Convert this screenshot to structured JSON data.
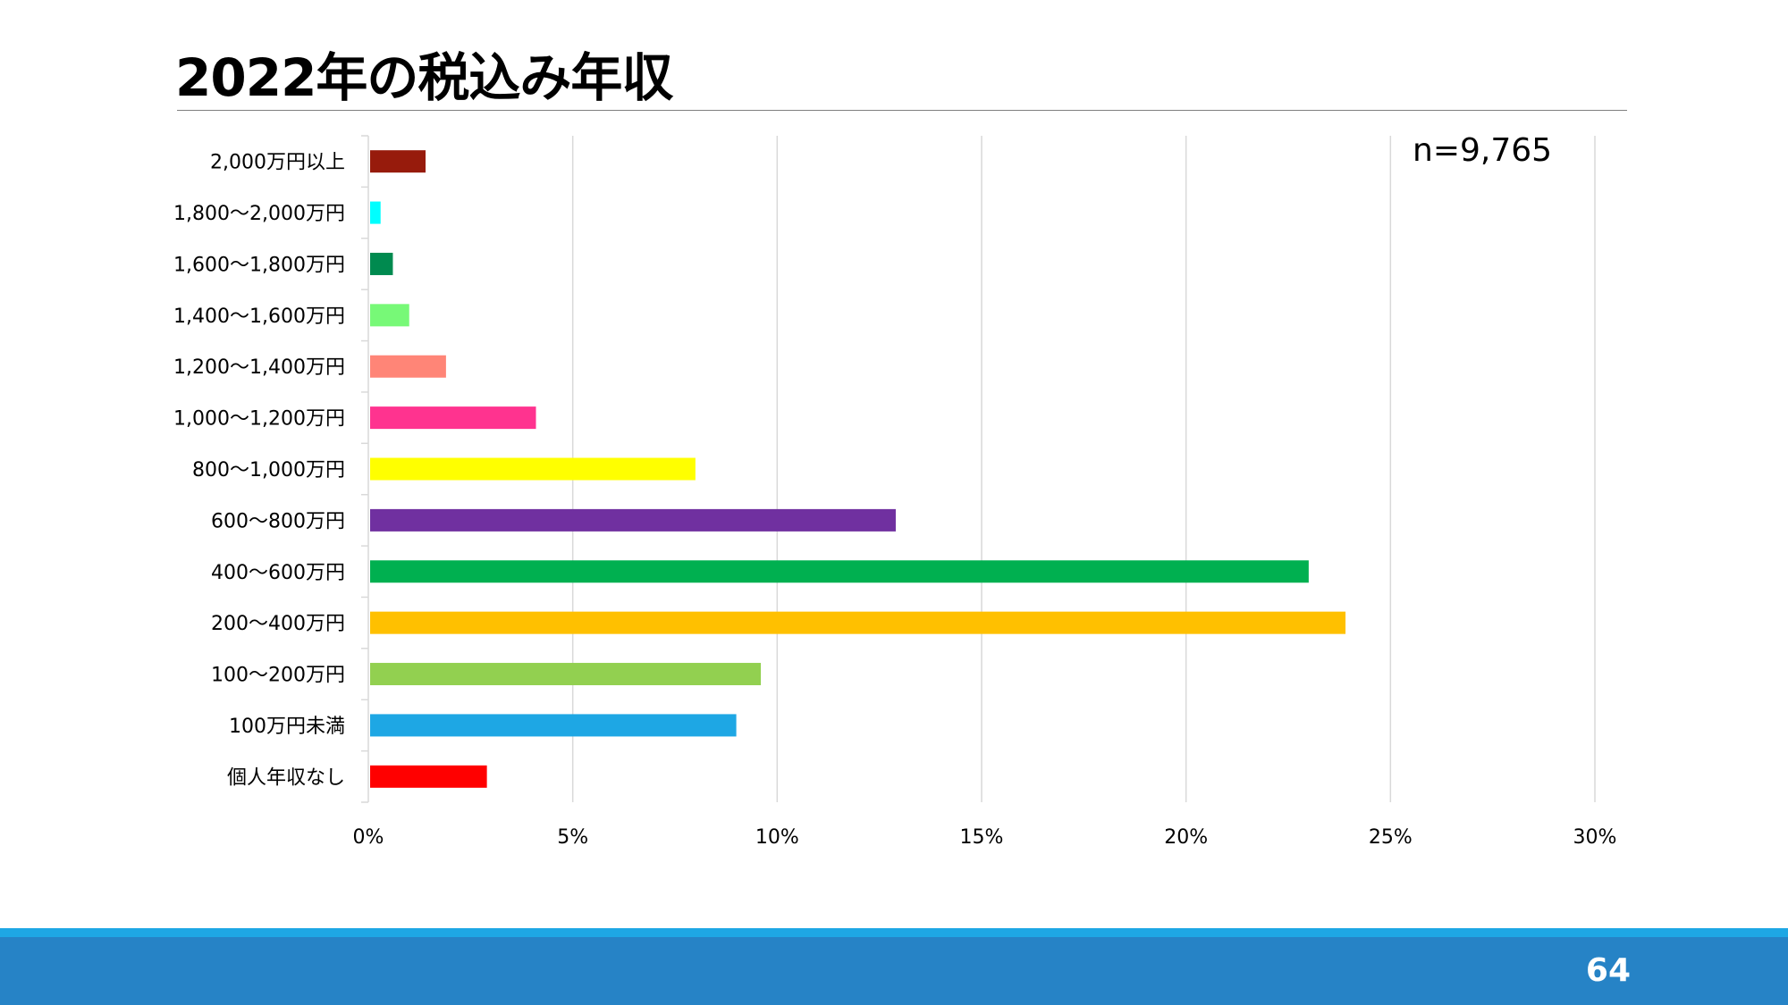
{
  "slide": {
    "title": "2022年の税込み年収",
    "page_number": "64"
  },
  "chart_data": {
    "type": "bar",
    "orientation": "horizontal",
    "title": "",
    "annotation": "n=9,765",
    "xlabel": "",
    "ylabel": "",
    "xlim": [
      0,
      30
    ],
    "x_ticks": [
      0,
      5,
      10,
      15,
      20,
      25,
      30
    ],
    "x_tick_format": "percent",
    "grid": "vertical",
    "legend": "none",
    "categories": [
      "2,000万円以上",
      "1,800〜2,000万円",
      "1,600〜1,800万円",
      "1,400〜1,600万円",
      "1,200〜1,400万円",
      "1,000〜1,200万円",
      "800〜1,000万円",
      "600〜800万円",
      "400〜600万円",
      "200〜400万円",
      "100〜200万円",
      "100万円未満",
      "個人年収なし"
    ],
    "values": [
      1.4,
      0.3,
      0.6,
      1.0,
      1.9,
      4.1,
      8.0,
      12.9,
      23.0,
      23.9,
      9.6,
      9.0,
      2.9
    ],
    "colors": [
      "#971b0c",
      "#00ffff",
      "#008a4f",
      "#77f977",
      "#ff8577",
      "#ff338f",
      "#ffff00",
      "#7030a0",
      "#00b050",
      "#ffc000",
      "#92d050",
      "#1ea7e4",
      "#ff0000"
    ]
  }
}
